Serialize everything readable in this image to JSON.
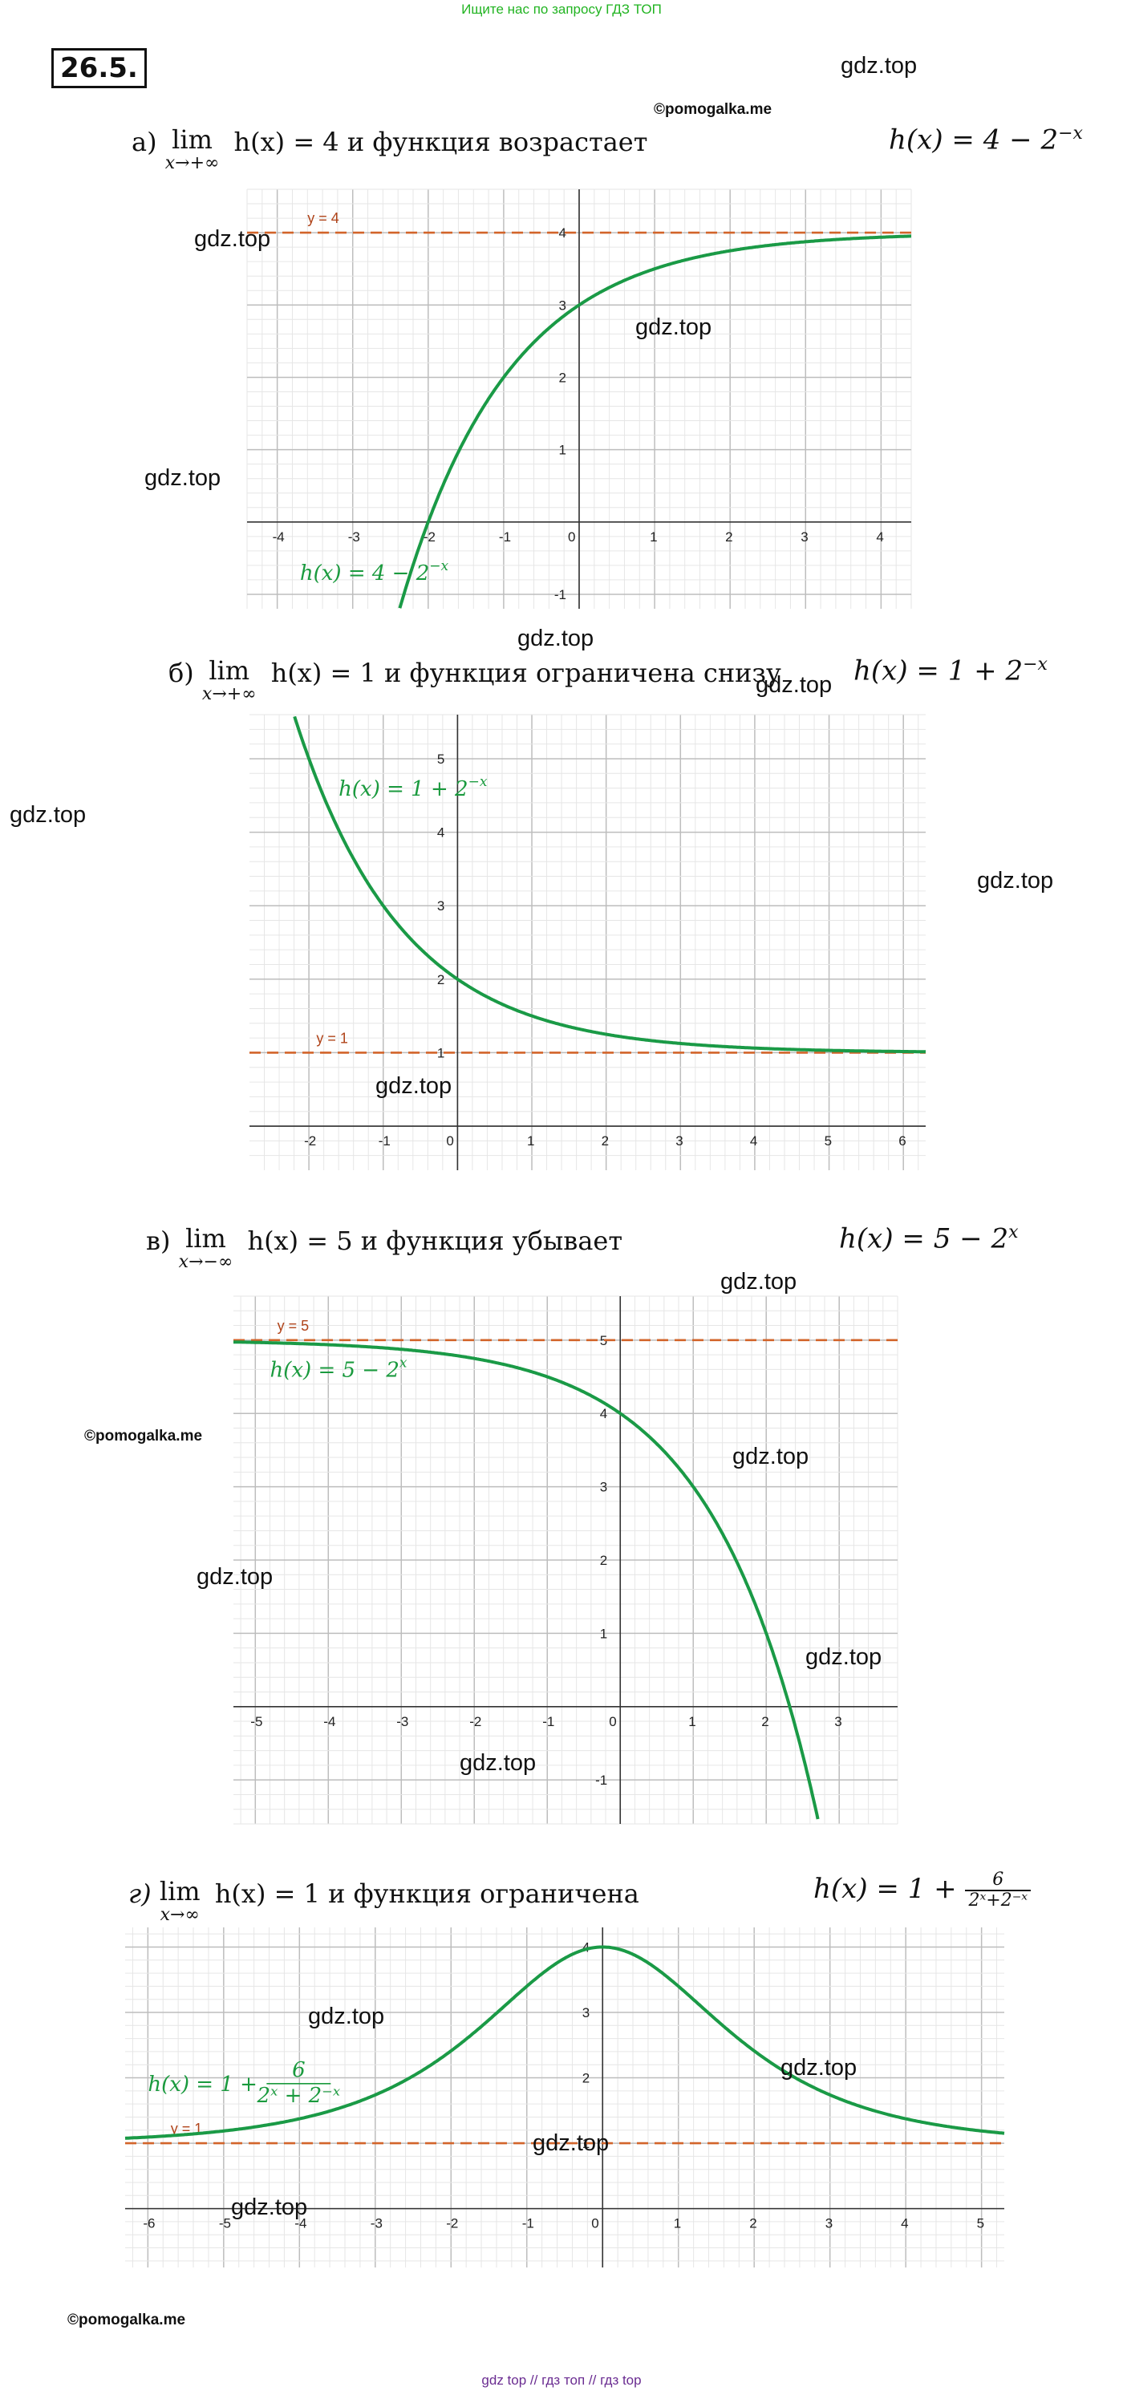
{
  "top_link": "Ищите нас по запросу ГДЗ ТОП",
  "problem_number": "26.5.",
  "watermark": "gdz.top",
  "copyright": "©pomogalka.me",
  "bottom_link": "gdz top  //  гдз топ  //  гдз top",
  "parts": [
    {
      "letter": "а)",
      "lim_under": "x→+∞",
      "tail": " h(x) = 4 и функция возрастает",
      "formula": "h(x) = 4 − 2",
      "formula_exp": "−x",
      "asymptote_label": "y = 4",
      "curve_label": "h(x) = 4 − 2",
      "curve_label_exp": "−x",
      "x_ticks": [
        "-4",
        "-3",
        "-2",
        "-1",
        "0",
        "1",
        "2",
        "3",
        "4"
      ],
      "y_ticks": [
        "-1",
        "1",
        "2",
        "3",
        "4"
      ]
    },
    {
      "letter": "б)",
      "lim_under": "x→+∞",
      "tail": " h(x) = 1 и функция ограничена снизу",
      "formula": "h(x) = 1 + 2",
      "formula_exp": "−x",
      "asymptote_label": "y = 1",
      "curve_label": "h(x) = 1 + 2",
      "curve_label_exp": "−x",
      "x_ticks": [
        "-2",
        "-1",
        "0",
        "1",
        "2",
        "3",
        "4",
        "5",
        "6"
      ],
      "y_ticks": [
        "1",
        "2",
        "3",
        "4",
        "5"
      ]
    },
    {
      "letter": "в)",
      "lim_under": "x→−∞",
      "tail": " h(x) = 5 и функция убывает",
      "formula": "h(x) = 5 − 2",
      "formula_exp": "x",
      "asymptote_label": "y = 5",
      "curve_label": "h(x) = 5 − 2",
      "curve_label_exp": "x",
      "x_ticks": [
        "-5",
        "-4",
        "-3",
        "-2",
        "-1",
        "0",
        "1",
        "2",
        "3"
      ],
      "y_ticks": [
        "-1",
        "1",
        "2",
        "3",
        "4",
        "5"
      ]
    },
    {
      "letter": "г)",
      "lim_under": "x→∞",
      "tail": " h(x) = 1 и функция ограничена",
      "formula": "h(x) = 1 + ",
      "frac_num": "6",
      "frac_den": "2ˣ+2⁻ˣ",
      "asymptote_label": "y = 1",
      "curve_label": "h(x) = 1 + ",
      "curve_frac_num": "6",
      "curve_frac_den": "2ˣ + 2⁻ˣ",
      "x_ticks": [
        "-6",
        "-5",
        "-4",
        "-3",
        "-2",
        "-1",
        "0",
        "1",
        "2",
        "3",
        "4",
        "5"
      ],
      "y_ticks": [
        "1",
        "2",
        "3",
        "4"
      ]
    }
  ],
  "chart_data": [
    {
      "type": "line",
      "function": "h(x) = 4 - 2^-x",
      "xlim": [
        -4.4,
        4.4
      ],
      "ylim": [
        -1.2,
        4.6
      ],
      "asymptote": 4,
      "grid": true,
      "x": [
        -2.3,
        -2,
        -1,
        0,
        1,
        2,
        3,
        4.4
      ],
      "y": [
        -0.92,
        0,
        2,
        3,
        3.5,
        3.75,
        3.875,
        3.95
      ]
    },
    {
      "type": "line",
      "function": "h(x) = 1 + 2^-x",
      "xlim": [
        -2.8,
        6.3
      ],
      "ylim": [
        -0.6,
        5.6
      ],
      "asymptote": 1,
      "grid": true,
      "x": [
        -2.2,
        -2,
        -1,
        0,
        1,
        2,
        4,
        6.3
      ],
      "y": [
        5.6,
        5,
        3,
        2,
        1.5,
        1.25,
        1.06,
        1.01
      ]
    },
    {
      "type": "line",
      "function": "h(x) = 5 - 2^x",
      "xlim": [
        -5.3,
        3.8
      ],
      "ylim": [
        -1.6,
        5.6
      ],
      "asymptote": 5,
      "grid": true,
      "x": [
        -5.3,
        -3,
        -2,
        -1,
        0,
        1,
        2,
        2.7
      ],
      "y": [
        4.97,
        4.875,
        4.75,
        4.5,
        4,
        3,
        1,
        -1.5
      ]
    },
    {
      "type": "line",
      "function": "h(x) = 1 + 6/(2^x + 2^-x)",
      "xlim": [
        -6.3,
        5.3
      ],
      "ylim": [
        -0.9,
        4.3
      ],
      "asymptote": 1,
      "grid": true,
      "x": [
        -6.3,
        -4,
        -3,
        -2,
        -1,
        0,
        1,
        2,
        3,
        4,
        5.3
      ],
      "y": [
        1.08,
        1.37,
        1.74,
        2.41,
        3.4,
        4,
        3.4,
        2.41,
        1.74,
        1.37,
        1.15
      ]
    }
  ]
}
